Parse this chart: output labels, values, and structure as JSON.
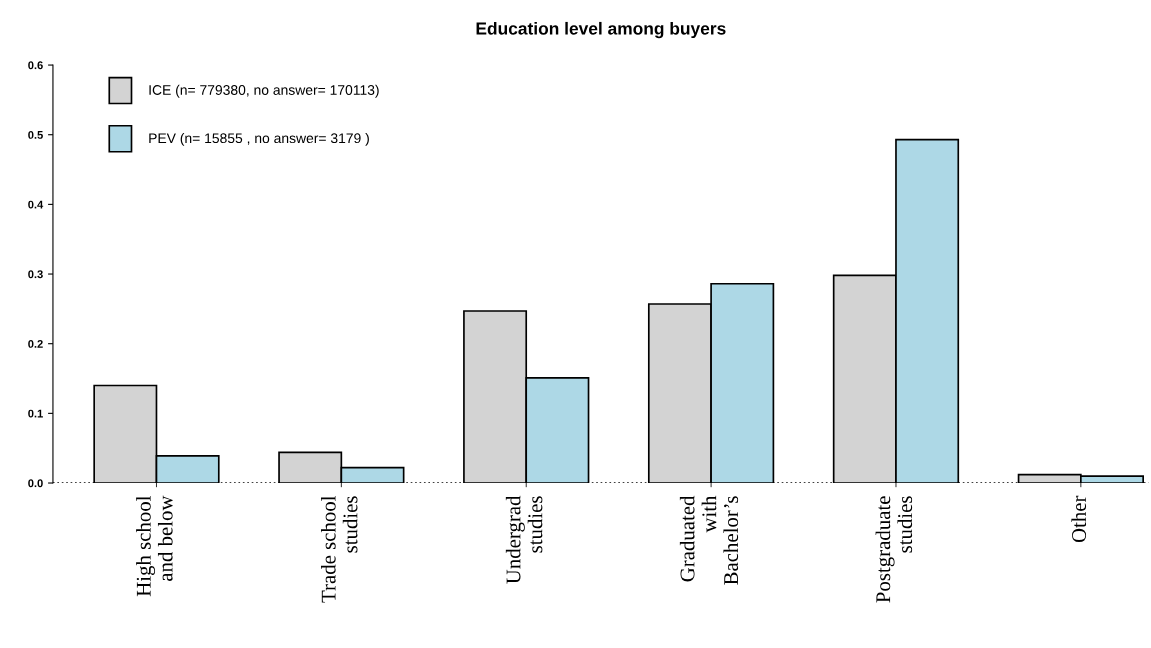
{
  "chart_data": {
    "type": "bar",
    "title": "Education level among buyers",
    "categories": [
      "High school\nand below",
      "Trade school\nstudies",
      "Undergrad\nstudies",
      "Graduated\nwith\nBachelor’s",
      "Postgraduate\nstudies",
      "Other"
    ],
    "series": [
      {
        "name": "ICE (n= 779380, no answer= 170113)",
        "color": "#d3d3d3",
        "values": [
          0.14,
          0.044,
          0.247,
          0.257,
          0.298,
          0.012
        ]
      },
      {
        "name": "PEV (n= 15855 , no answer= 3179 )",
        "color": "#add8e6",
        "values": [
          0.039,
          0.022,
          0.151,
          0.286,
          0.493,
          0.01
        ]
      }
    ],
    "ylim": [
      0,
      0.6
    ],
    "yticks": [
      {
        "value": 0,
        "label": "0.0"
      },
      0.1,
      0.2,
      0.3,
      0.4,
      0.5,
      0.6
    ],
    "ref_lines": [
      {
        "axis": "y",
        "value": 0,
        "line_style": "dotted",
        "color": "#000000"
      }
    ],
    "grid": false,
    "legend": "top left"
  }
}
